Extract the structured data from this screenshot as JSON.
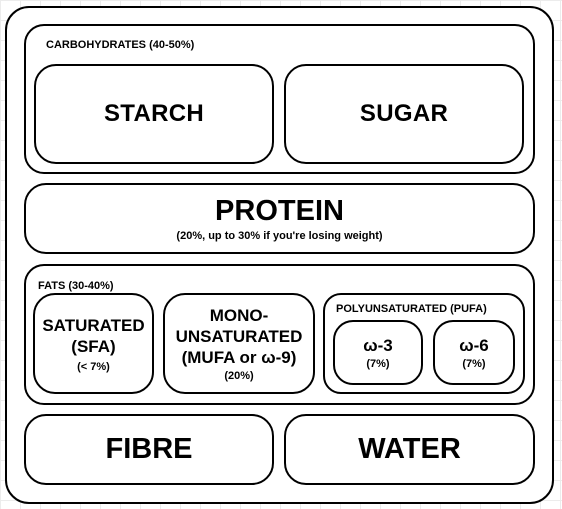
{
  "carbohydrates": {
    "title": "CARBOHYDRATES (40-50%)",
    "starch": "STARCH",
    "sugar": "SUGAR"
  },
  "protein": {
    "title": "PROTEIN",
    "note": "(20%, up to 30% if you're losing weight)"
  },
  "fats": {
    "title": "FATS (30-40%)",
    "saturated": {
      "line1": "SATURATED",
      "line2": "(SFA)",
      "note": "(< 7%)"
    },
    "mono": {
      "line1": "MONO-",
      "line2": "UNSATURATED",
      "line3": "(MUFA or ω-9)",
      "note": "(20%)"
    },
    "poly": {
      "title": "POLYUNSATURATED (PUFA)",
      "omega3": {
        "label": "ω-3",
        "note": "(7%)"
      },
      "omega6": {
        "label": "ω-6",
        "note": "(7%)"
      }
    }
  },
  "fibre": "FIBRE",
  "water": "WATER"
}
